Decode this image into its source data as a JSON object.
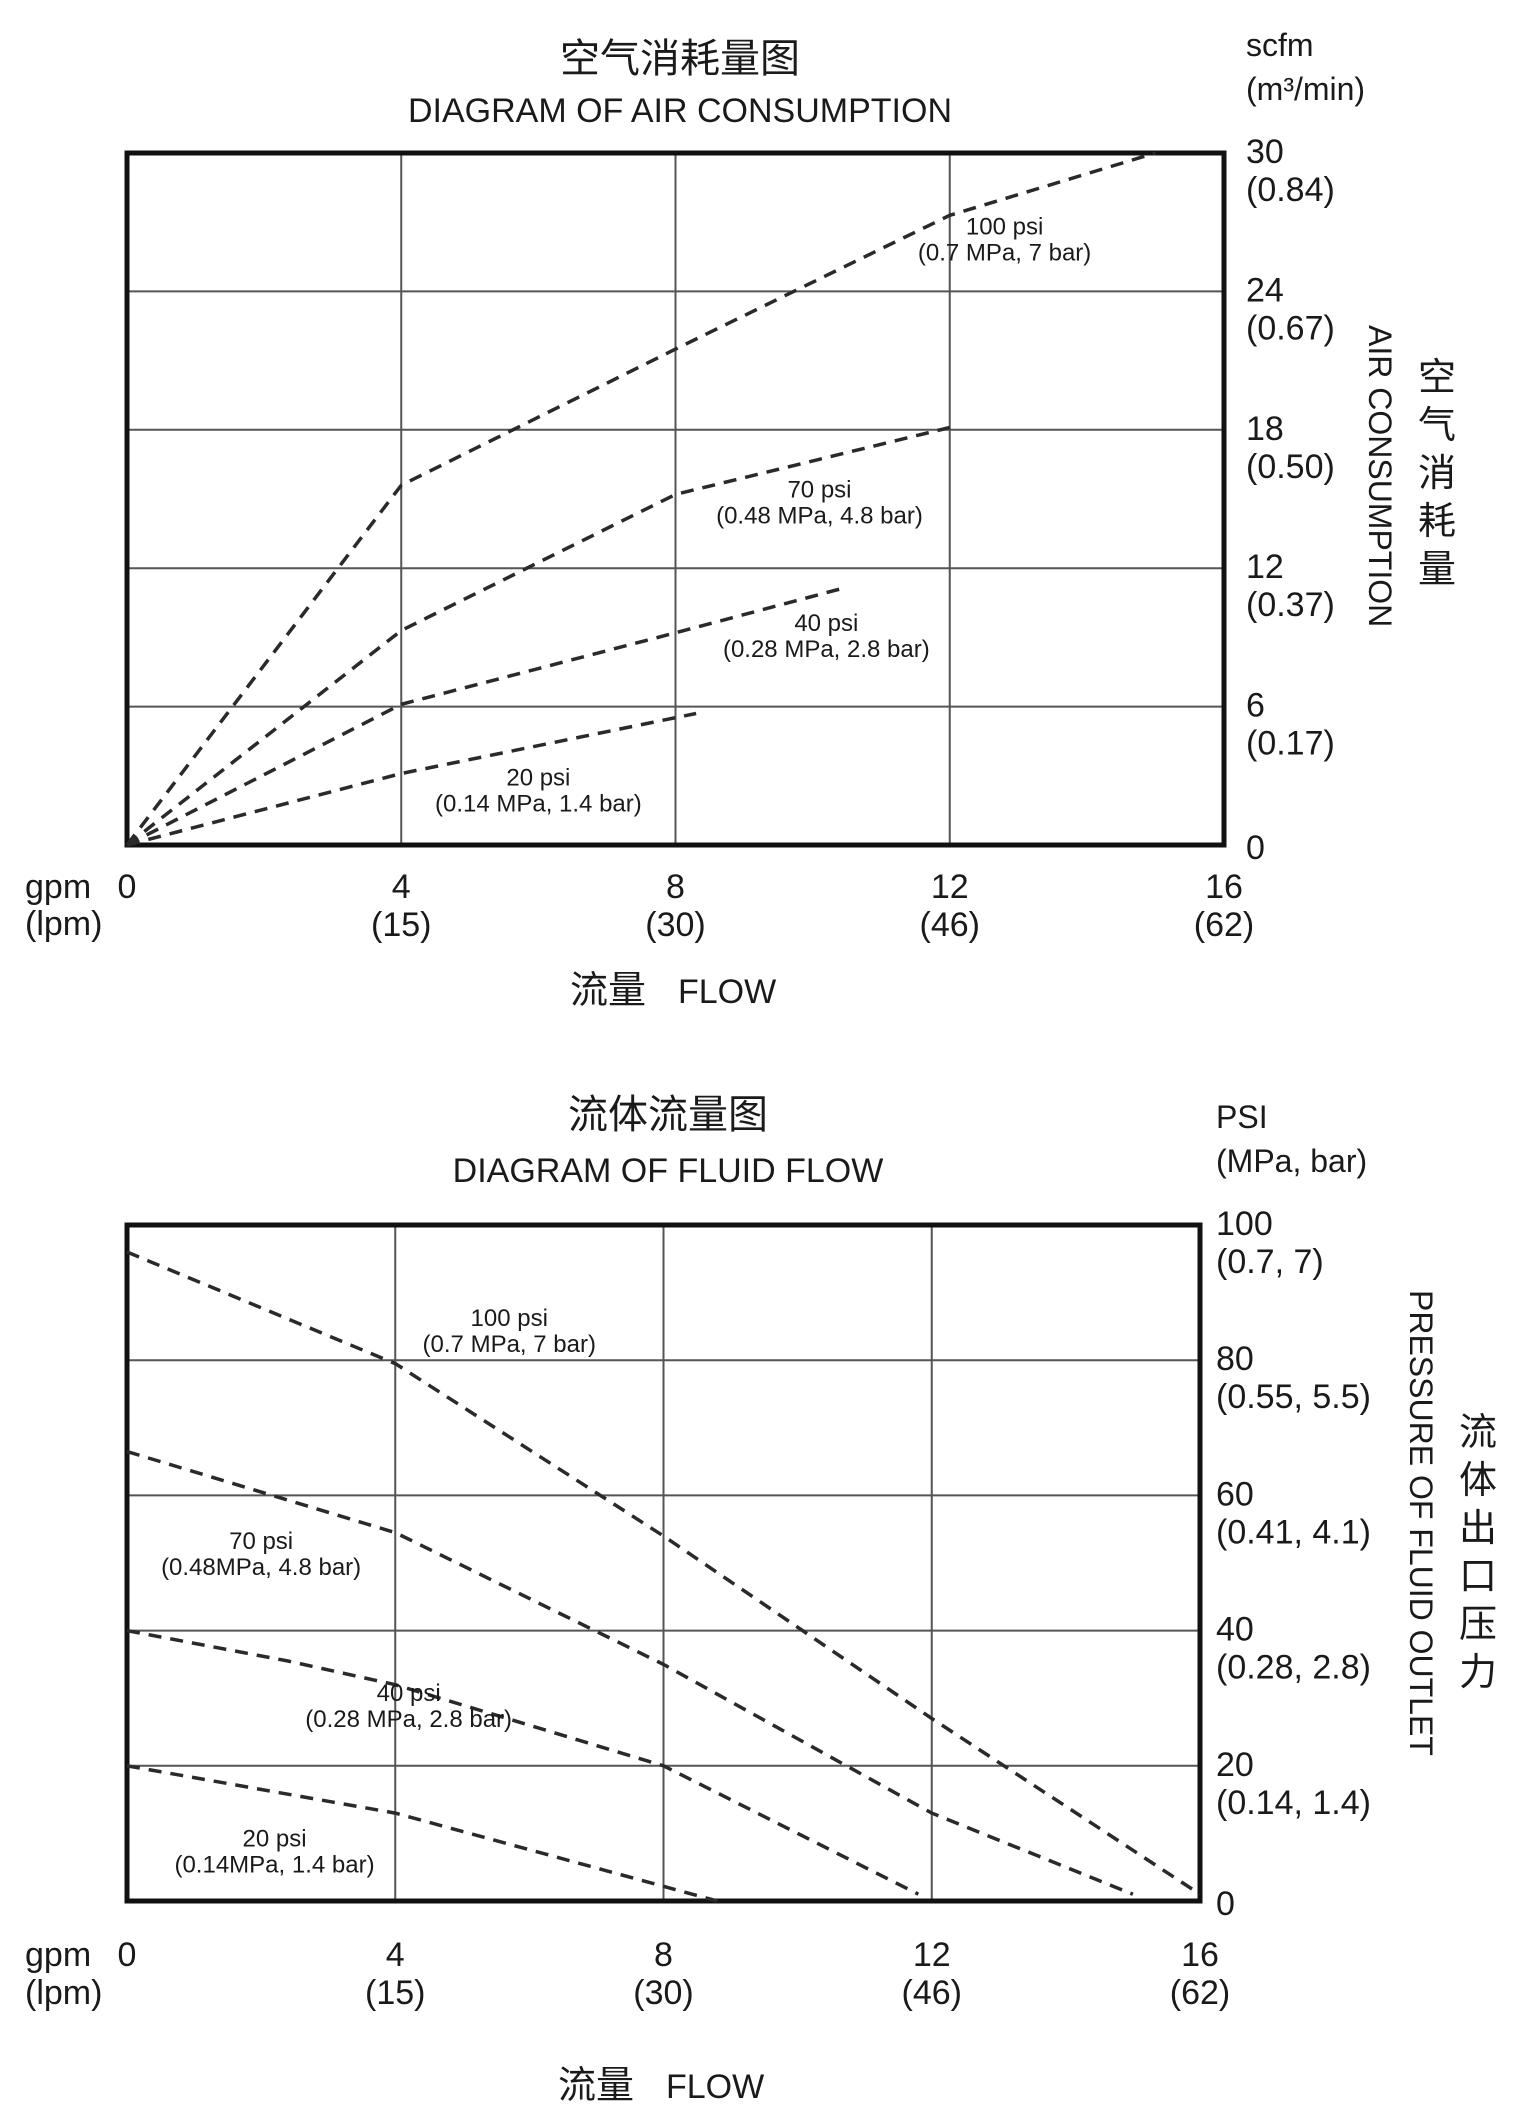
{
  "chart_data": [
    {
      "type": "line",
      "title_cn": "空气消耗量图",
      "title": "DIAGRAM OF AIR CONSUMPTION",
      "xlabel_cn": "流量",
      "xlabel": "FLOW",
      "x_unit_primary": "gpm",
      "x_unit_secondary": "(lpm)",
      "x_ticks": [
        {
          "gpm": "0",
          "lpm": ""
        },
        {
          "gpm": "4",
          "lpm": "(15)"
        },
        {
          "gpm": "8",
          "lpm": "(30)"
        },
        {
          "gpm": "12",
          "lpm": "(46)"
        },
        {
          "gpm": "16",
          "lpm": "(62)"
        }
      ],
      "y_unit_primary": "scfm",
      "y_unit_secondary": "(m³/min)",
      "ylabel": "AIR CONSUMPTION",
      "ylabel_cn": "空气消耗量",
      "y_ticks": [
        {
          "value": "0",
          "sub": ""
        },
        {
          "value": "6",
          "sub": "(0.17)"
        },
        {
          "value": "12",
          "sub": "(0.37)"
        },
        {
          "value": "18",
          "sub": "(0.50)"
        },
        {
          "value": "24",
          "sub": "(0.67)"
        },
        {
          "value": "30",
          "sub": "(0.84)"
        }
      ],
      "xlim": [
        0,
        16
      ],
      "ylim": [
        0,
        30
      ],
      "grid": true,
      "series": [
        {
          "name": "100 psi",
          "name_sub": "(0.7 MPa, 7 bar)",
          "points": [
            [
              0,
              0
            ],
            [
              4,
              15.6
            ],
            [
              8,
              21.5
            ],
            [
              12,
              27.3
            ],
            [
              15,
              30
            ]
          ],
          "label_at": [
            12.8,
            26.3
          ]
        },
        {
          "name": "70 psi",
          "name_sub": "(0.48 MPa, 4.8 bar)",
          "points": [
            [
              0,
              0
            ],
            [
              4,
              9.3
            ],
            [
              8,
              15.2
            ],
            [
              12,
              18.1
            ]
          ],
          "label_at": [
            10.1,
            14.9
          ]
        },
        {
          "name": "40 psi",
          "name_sub": "(0.28 MPa, 2.8 bar)",
          "points": [
            [
              0,
              0
            ],
            [
              4,
              6.1
            ],
            [
              8,
              9.2
            ],
            [
              10.4,
              11.1
            ]
          ],
          "label_at": [
            10.2,
            9.1
          ]
        },
        {
          "name": "20 psi",
          "name_sub": "(0.14 MPa, 1.4 bar)",
          "points": [
            [
              0,
              0
            ],
            [
              4,
              3.1
            ],
            [
              8.3,
              5.7
            ]
          ],
          "label_at": [
            6.0,
            2.4
          ]
        }
      ]
    },
    {
      "type": "line",
      "title_cn": "流体流量图",
      "title": "DIAGRAM OF FLUID FLOW",
      "xlabel_cn": "流量",
      "xlabel": "FLOW",
      "x_unit_primary": "gpm",
      "x_unit_secondary": "(lpm)",
      "x_ticks": [
        {
          "gpm": "0",
          "lpm": ""
        },
        {
          "gpm": "4",
          "lpm": "(15)"
        },
        {
          "gpm": "8",
          "lpm": "(30)"
        },
        {
          "gpm": "12",
          "lpm": "(46)"
        },
        {
          "gpm": "16",
          "lpm": "(62)"
        }
      ],
      "y_unit_primary": "PSI",
      "y_unit_secondary": "(MPa, bar)",
      "ylabel": "PRESSURE OF FLUID OUTLET",
      "ylabel_cn": "流体出口压力",
      "y_ticks": [
        {
          "value": "0",
          "sub": ""
        },
        {
          "value": "20",
          "sub": "(0.14, 1.4)"
        },
        {
          "value": "40",
          "sub": "(0.28, 2.8)"
        },
        {
          "value": "60",
          "sub": "(0.41, 4.1)"
        },
        {
          "value": "80",
          "sub": "(0.55, 5.5)"
        },
        {
          "value": "100",
          "sub": "(0.7, 7)"
        }
      ],
      "xlim": [
        0,
        16
      ],
      "ylim": [
        0,
        100
      ],
      "grid": true,
      "series": [
        {
          "name": "100 psi",
          "name_sub": "(0.7 MPa, 7 bar)",
          "points": [
            [
              0,
              96
            ],
            [
              4,
              79.5
            ],
            [
              8,
              54
            ],
            [
              12,
              27
            ],
            [
              16,
              1
            ]
          ],
          "label_at": [
            5.7,
            84.5
          ]
        },
        {
          "name": "70 psi",
          "name_sub": "(0.48MPa, 4.8 bar)",
          "points": [
            [
              0,
              66.5
            ],
            [
              4,
              54.5
            ],
            [
              8,
              35
            ],
            [
              12,
              13
            ],
            [
              15,
              1
            ]
          ],
          "label_at": [
            2.0,
            51.5
          ]
        },
        {
          "name": "40 psi",
          "name_sub": "(0.28 MPa, 2.8 bar)",
          "points": [
            [
              0,
              40
            ],
            [
              2.4,
              35.5
            ],
            [
              4,
              32
            ],
            [
              8,
              20
            ],
            [
              11.8,
              1
            ]
          ],
          "label_at": [
            4.2,
            29.0
          ]
        },
        {
          "name": "20 psi",
          "name_sub": "(0.14MPa, 1.4 bar)",
          "points": [
            [
              0,
              20
            ],
            [
              4,
              13
            ],
            [
              8.8,
              0
            ]
          ],
          "label_at": [
            2.2,
            7.5
          ]
        }
      ]
    }
  ]
}
